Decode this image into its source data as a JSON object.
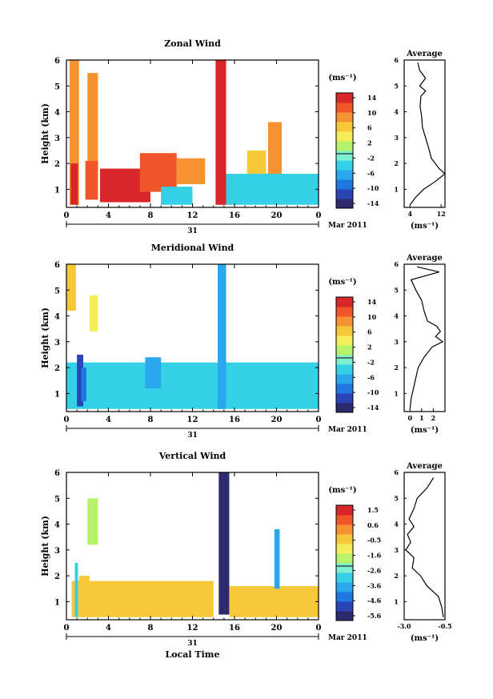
{
  "figure": {
    "month_label": "Mar 2011",
    "day_label": "31",
    "xlabel": "Local Time"
  },
  "chart_data": [
    {
      "id": "zonal",
      "type": "heatmap",
      "title": "Zonal Wind",
      "xlabel": "",
      "ylabel": "Height (km)",
      "xlim": [
        0,
        24
      ],
      "ylim": [
        0.3,
        6
      ],
      "xticks": [
        "0",
        "4",
        "8",
        "12",
        "16",
        "20",
        "0"
      ],
      "yticks": [
        "1",
        "2",
        "3",
        "4",
        "5",
        "6"
      ],
      "colorbar": {
        "unit": "(ms⁻¹)",
        "ticks": [
          "14",
          "10",
          "6",
          "2",
          "-2",
          "-6",
          "-10",
          "-14"
        ],
        "range": [
          -16,
          16
        ]
      },
      "cells": [
        {
          "t0": 0.3,
          "t1": 1.2,
          "h0": 0.4,
          "h1": 6.0,
          "v": 8
        },
        {
          "t0": 0.4,
          "t1": 1.1,
          "h0": 0.4,
          "h1": 2.0,
          "v": 14
        },
        {
          "t0": 2.0,
          "t1": 3.0,
          "h0": 0.6,
          "h1": 5.5,
          "v": 9
        },
        {
          "t0": 1.8,
          "t1": 3.0,
          "h0": 0.6,
          "h1": 2.1,
          "v": 13
        },
        {
          "t0": 3.2,
          "t1": 8.0,
          "h0": 0.5,
          "h1": 1.8,
          "v": 14
        },
        {
          "t0": 7.0,
          "t1": 10.5,
          "h0": 0.9,
          "h1": 2.4,
          "v": 11
        },
        {
          "t0": 10.5,
          "t1": 13.2,
          "h0": 1.2,
          "h1": 2.2,
          "v": 10
        },
        {
          "t0": 9.0,
          "t1": 12.0,
          "h0": 0.4,
          "h1": 1.1,
          "v": -3
        },
        {
          "t0": 14.2,
          "t1": 15.2,
          "h0": 0.4,
          "h1": 6.0,
          "v": 14
        },
        {
          "t0": 15.2,
          "t1": 24.0,
          "h0": 0.4,
          "h1": 1.6,
          "v": -3
        },
        {
          "t0": 19.2,
          "t1": 20.5,
          "h0": 1.6,
          "h1": 3.6,
          "v": 10
        },
        {
          "t0": 17.2,
          "t1": 19.0,
          "h0": 1.6,
          "h1": 2.5,
          "v": 6
        }
      ],
      "profile": {
        "title": "Average",
        "xlabel": "(ms⁻¹)",
        "xlim": [
          2.5,
          13
        ],
        "xticks": [
          "4",
          "12"
        ],
        "xtick_values": [
          4,
          12
        ],
        "ylim": [
          0.3,
          6
        ],
        "yticks": [
          "1",
          "2",
          "3",
          "4",
          "5",
          "6"
        ],
        "h": [
          0.4,
          0.7,
          1.0,
          1.3,
          1.6,
          1.8,
          2.2,
          2.6,
          3.0,
          3.4,
          3.8,
          4.2,
          4.6,
          4.8,
          5.0,
          5.3,
          5.6,
          5.9
        ],
        "x": [
          4.0,
          5.5,
          7.5,
          10.5,
          13.0,
          11.5,
          9.5,
          8.8,
          8.0,
          7.2,
          7.0,
          6.6,
          6.8,
          8.0,
          6.5,
          8.0,
          6.5,
          6.0
        ]
      }
    },
    {
      "id": "meridional",
      "type": "heatmap",
      "title": "Meridional Wind",
      "xlabel": "",
      "ylabel": "Height (km)",
      "xlim": [
        0,
        24
      ],
      "ylim": [
        0.3,
        6
      ],
      "xticks": [
        "0",
        "4",
        "8",
        "12",
        "16",
        "20",
        "0"
      ],
      "yticks": [
        "1",
        "2",
        "3",
        "4",
        "5",
        "6"
      ],
      "colorbar": {
        "unit": "(ms⁻¹)",
        "ticks": [
          "14",
          "10",
          "6",
          "2",
          "-2",
          "-6",
          "-10",
          "-14"
        ],
        "range": [
          -16,
          16
        ]
      },
      "cells": [
        {
          "t0": 0.0,
          "t1": 24.0,
          "h0": 0.4,
          "h1": 2.2,
          "v": -3
        },
        {
          "t0": 1.0,
          "t1": 1.6,
          "h0": 0.5,
          "h1": 2.5,
          "v": -12
        },
        {
          "t0": 1.4,
          "t1": 1.9,
          "h0": 0.7,
          "h1": 2.0,
          "v": -10
        },
        {
          "t0": 7.5,
          "t1": 9.0,
          "h0": 1.2,
          "h1": 2.4,
          "v": -6
        },
        {
          "t0": 14.4,
          "t1": 15.2,
          "h0": 0.4,
          "h1": 6.0,
          "v": -7
        },
        {
          "t0": 0.0,
          "t1": 0.9,
          "h0": 4.2,
          "h1": 6.0,
          "v": 6
        },
        {
          "t0": 2.2,
          "t1": 3.0,
          "h0": 3.4,
          "h1": 4.8,
          "v": 4
        }
      ],
      "profile": {
        "title": "Average",
        "xlabel": "(ms⁻¹)",
        "xlim": [
          -0.5,
          3.0
        ],
        "xticks": [
          "0",
          "1",
          "2"
        ],
        "xtick_values": [
          0,
          1,
          2
        ],
        "ylim": [
          0.3,
          6
        ],
        "yticks": [
          "1",
          "2",
          "3",
          "4",
          "5",
          "6"
        ],
        "h": [
          0.4,
          0.8,
          1.2,
          1.6,
          2.0,
          2.4,
          2.8,
          3.0,
          3.2,
          3.4,
          3.6,
          3.8,
          4.2,
          4.6,
          5.0,
          5.4,
          5.7,
          5.9
        ],
        "x": [
          0.0,
          0.1,
          0.3,
          0.5,
          0.7,
          1.2,
          1.9,
          2.8,
          2.2,
          2.6,
          2.3,
          1.5,
          1.2,
          1.0,
          0.5,
          0.1,
          2.5,
          0.6
        ]
      }
    },
    {
      "id": "vertical",
      "type": "heatmap",
      "title": "Vertical Wind",
      "xlabel": "Local Time",
      "ylabel": "Height (km)",
      "xlim": [
        0,
        24
      ],
      "ylim": [
        0.3,
        6
      ],
      "xticks": [
        "0",
        "4",
        "8",
        "12",
        "16",
        "20",
        "0"
      ],
      "yticks": [
        "1",
        "2",
        "3",
        "4",
        "5",
        "6"
      ],
      "colorbar": {
        "unit": "(ms⁻¹)",
        "ticks": [
          "1.5",
          "0.6",
          "-0.5",
          "-1.6",
          "-2.6",
          "-3.6",
          "-4.6",
          "-5.6"
        ],
        "range": [
          -6.0,
          2.0
        ]
      },
      "cells": [
        {
          "t0": 0.5,
          "t1": 14.0,
          "h0": 0.4,
          "h1": 1.8,
          "v": -0.1
        },
        {
          "t0": 1.2,
          "t1": 2.2,
          "h0": 0.4,
          "h1": 2.0,
          "v": -0.3
        },
        {
          "t0": 0.8,
          "t1": 1.1,
          "h0": 0.4,
          "h1": 2.5,
          "v": -3.0
        },
        {
          "t0": 14.5,
          "t1": 15.5,
          "h0": 0.5,
          "h1": 6.0,
          "v": -5.8
        },
        {
          "t0": 15.5,
          "t1": 24.0,
          "h0": 0.4,
          "h1": 1.6,
          "v": -0.2
        },
        {
          "t0": 19.8,
          "t1": 20.3,
          "h0": 1.5,
          "h1": 3.8,
          "v": -3.5
        },
        {
          "t0": 2.0,
          "t1": 3.0,
          "h0": 3.2,
          "h1": 5.0,
          "v": -2.0
        }
      ],
      "profile": {
        "title": "Average",
        "xlabel": "(ms⁻¹)",
        "xlim": [
          -3.0,
          -0.5
        ],
        "xticks": [
          "-3.0",
          "-0.5"
        ],
        "xtick_values": [
          -3.0,
          -0.5
        ],
        "ylim": [
          0.3,
          6
        ],
        "yticks": [
          "1",
          "2",
          "3",
          "4",
          "5",
          "6"
        ],
        "h": [
          0.4,
          0.8,
          1.2,
          1.6,
          2.0,
          2.3,
          2.7,
          3.0,
          3.3,
          3.6,
          3.9,
          4.2,
          4.6,
          5.0,
          5.4,
          5.8
        ],
        "x": [
          -0.6,
          -0.7,
          -0.9,
          -1.6,
          -2.0,
          -2.5,
          -2.4,
          -2.9,
          -2.6,
          -2.8,
          -2.4,
          -2.7,
          -2.4,
          -2.2,
          -1.6,
          -1.2
        ]
      }
    }
  ]
}
